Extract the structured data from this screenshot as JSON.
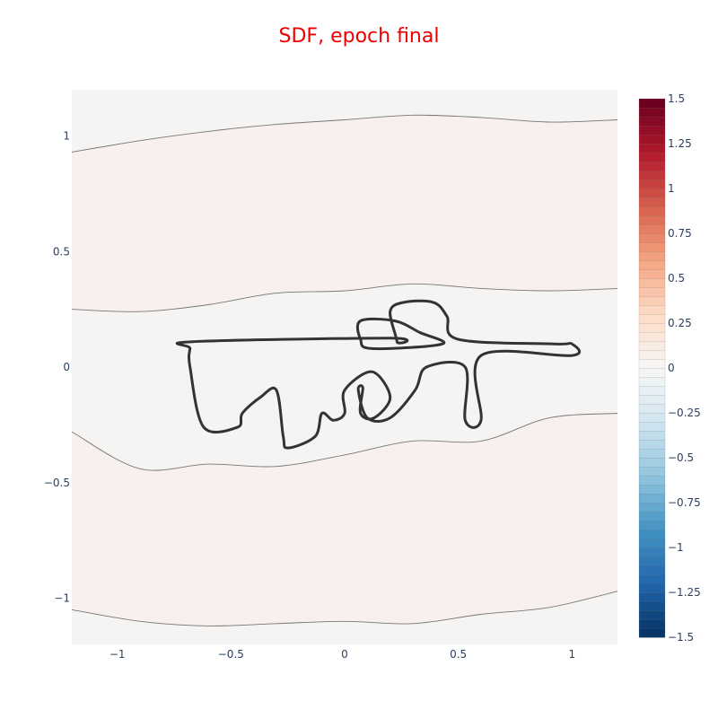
{
  "chart_data": {
    "type": "contour",
    "title": "SDF, epoch final",
    "title_color": "#ee0000",
    "xlabel": "",
    "ylabel": "",
    "xlim": [
      -1.2,
      1.2
    ],
    "ylim": [
      -1.2,
      1.2
    ],
    "x_ticks": [
      {
        "value": -1,
        "label": "−1"
      },
      {
        "value": -0.5,
        "label": "−0.5"
      },
      {
        "value": 0,
        "label": "0"
      },
      {
        "value": 0.5,
        "label": "0.5"
      },
      {
        "value": 1,
        "label": "1"
      }
    ],
    "y_ticks": [
      {
        "value": 1,
        "label": "1"
      },
      {
        "value": 0.5,
        "label": "0.5"
      },
      {
        "value": 0,
        "label": "0"
      },
      {
        "value": -0.5,
        "label": "−0.5"
      },
      {
        "value": -1,
        "label": "−1"
      }
    ],
    "colorscale": "RdBu reversed",
    "zlim": [
      -1.5,
      1.5
    ],
    "colorbar_ticks": [
      {
        "value": 1.5,
        "label": "1.5"
      },
      {
        "value": 1.25,
        "label": "1.25"
      },
      {
        "value": 1,
        "label": "1"
      },
      {
        "value": 0.75,
        "label": "0.75"
      },
      {
        "value": 0.5,
        "label": "0.5"
      },
      {
        "value": 0.25,
        "label": "0.25"
      },
      {
        "value": 0,
        "label": "0"
      },
      {
        "value": -0.25,
        "label": "−0.25"
      },
      {
        "value": -0.5,
        "label": "−0.5"
      },
      {
        "value": -0.75,
        "label": "−0.75"
      },
      {
        "value": -1,
        "label": "−1"
      },
      {
        "value": -1.25,
        "label": "−1.25"
      },
      {
        "value": -1.5,
        "label": "−1.5"
      }
    ],
    "grid": false,
    "region_colors": {
      "near_zero": "#f5f4f3",
      "slightly_positive": "#f7f0ec",
      "inside_shape": "#f2f4f6"
    },
    "zero_contour": [
      [
        -0.67,
        0.11
      ],
      [
        0.2,
        0.125
      ],
      [
        0.23,
        0.11
      ],
      [
        0.2,
        0.24
      ],
      [
        0.26,
        0.28
      ],
      [
        0.39,
        0.28
      ],
      [
        0.45,
        0.22
      ],
      [
        0.5,
        0.12
      ],
      [
        0.92,
        0.1
      ],
      [
        1.0,
        0.1
      ],
      [
        1.0,
        0.05
      ],
      [
        0.6,
        0.05
      ],
      [
        0.6,
        -0.23
      ],
      [
        0.53,
        -0.23
      ],
      [
        0.53,
        0.0
      ],
      [
        0.36,
        0.0
      ],
      [
        0.31,
        -0.1
      ],
      [
        0.2,
        -0.22
      ],
      [
        0.1,
        -0.22
      ],
      [
        0.06,
        -0.1
      ],
      [
        0.08,
        -0.09
      ],
      [
        0.07,
        -0.2
      ],
      [
        0.13,
        -0.22
      ],
      [
        0.2,
        -0.13
      ],
      [
        0.12,
        -0.02
      ],
      [
        0.0,
        -0.1
      ],
      [
        0.0,
        -0.2
      ],
      [
        -0.05,
        -0.23
      ],
      [
        -0.1,
        -0.2
      ],
      [
        -0.13,
        -0.3
      ],
      [
        -0.25,
        -0.35
      ],
      [
        -0.27,
        -0.3
      ],
      [
        -0.3,
        -0.1
      ],
      [
        -0.37,
        -0.13
      ],
      [
        -0.45,
        -0.2
      ],
      [
        -0.47,
        -0.26
      ],
      [
        -0.62,
        -0.26
      ],
      [
        -0.68,
        0.0
      ],
      [
        -0.68,
        0.08
      ]
    ],
    "zero_contour_inner": [
      [
        0.07,
        0.2
      ],
      [
        0.22,
        0.2
      ],
      [
        0.33,
        0.15
      ],
      [
        0.43,
        0.1
      ],
      [
        0.12,
        0.08
      ],
      [
        0.07,
        0.12
      ]
    ],
    "level_contours": [
      {
        "level": 0.05,
        "points": [
          [
            -1.2,
            0.93
          ],
          [
            -0.9,
            0.98
          ],
          [
            -0.6,
            1.02
          ],
          [
            -0.3,
            1.05
          ],
          [
            0.0,
            1.07
          ],
          [
            0.3,
            1.09
          ],
          [
            0.6,
            1.08
          ],
          [
            0.9,
            1.06
          ],
          [
            1.2,
            1.07
          ]
        ]
      },
      {
        "level": 0.05,
        "points": [
          [
            -1.2,
            0.25
          ],
          [
            -0.9,
            0.24
          ],
          [
            -0.6,
            0.27
          ],
          [
            -0.3,
            0.32
          ],
          [
            0.0,
            0.33
          ],
          [
            0.3,
            0.36
          ],
          [
            0.6,
            0.34
          ],
          [
            0.9,
            0.33
          ],
          [
            1.2,
            0.34
          ]
        ]
      },
      {
        "level": 0.05,
        "points": [
          [
            -1.2,
            -0.28
          ],
          [
            -0.9,
            -0.44
          ],
          [
            -0.6,
            -0.42
          ],
          [
            -0.3,
            -0.43
          ],
          [
            0.0,
            -0.38
          ],
          [
            0.3,
            -0.32
          ],
          [
            0.6,
            -0.32
          ],
          [
            0.9,
            -0.22
          ],
          [
            1.2,
            -0.2
          ]
        ]
      },
      {
        "level": 0.05,
        "points": [
          [
            -1.2,
            -1.05
          ],
          [
            -0.9,
            -1.1
          ],
          [
            -0.6,
            -1.12
          ],
          [
            -0.3,
            -1.11
          ],
          [
            0.0,
            -1.1
          ],
          [
            0.3,
            -1.11
          ],
          [
            0.6,
            -1.07
          ],
          [
            0.9,
            -1.04
          ],
          [
            1.2,
            -0.97
          ]
        ]
      }
    ]
  }
}
